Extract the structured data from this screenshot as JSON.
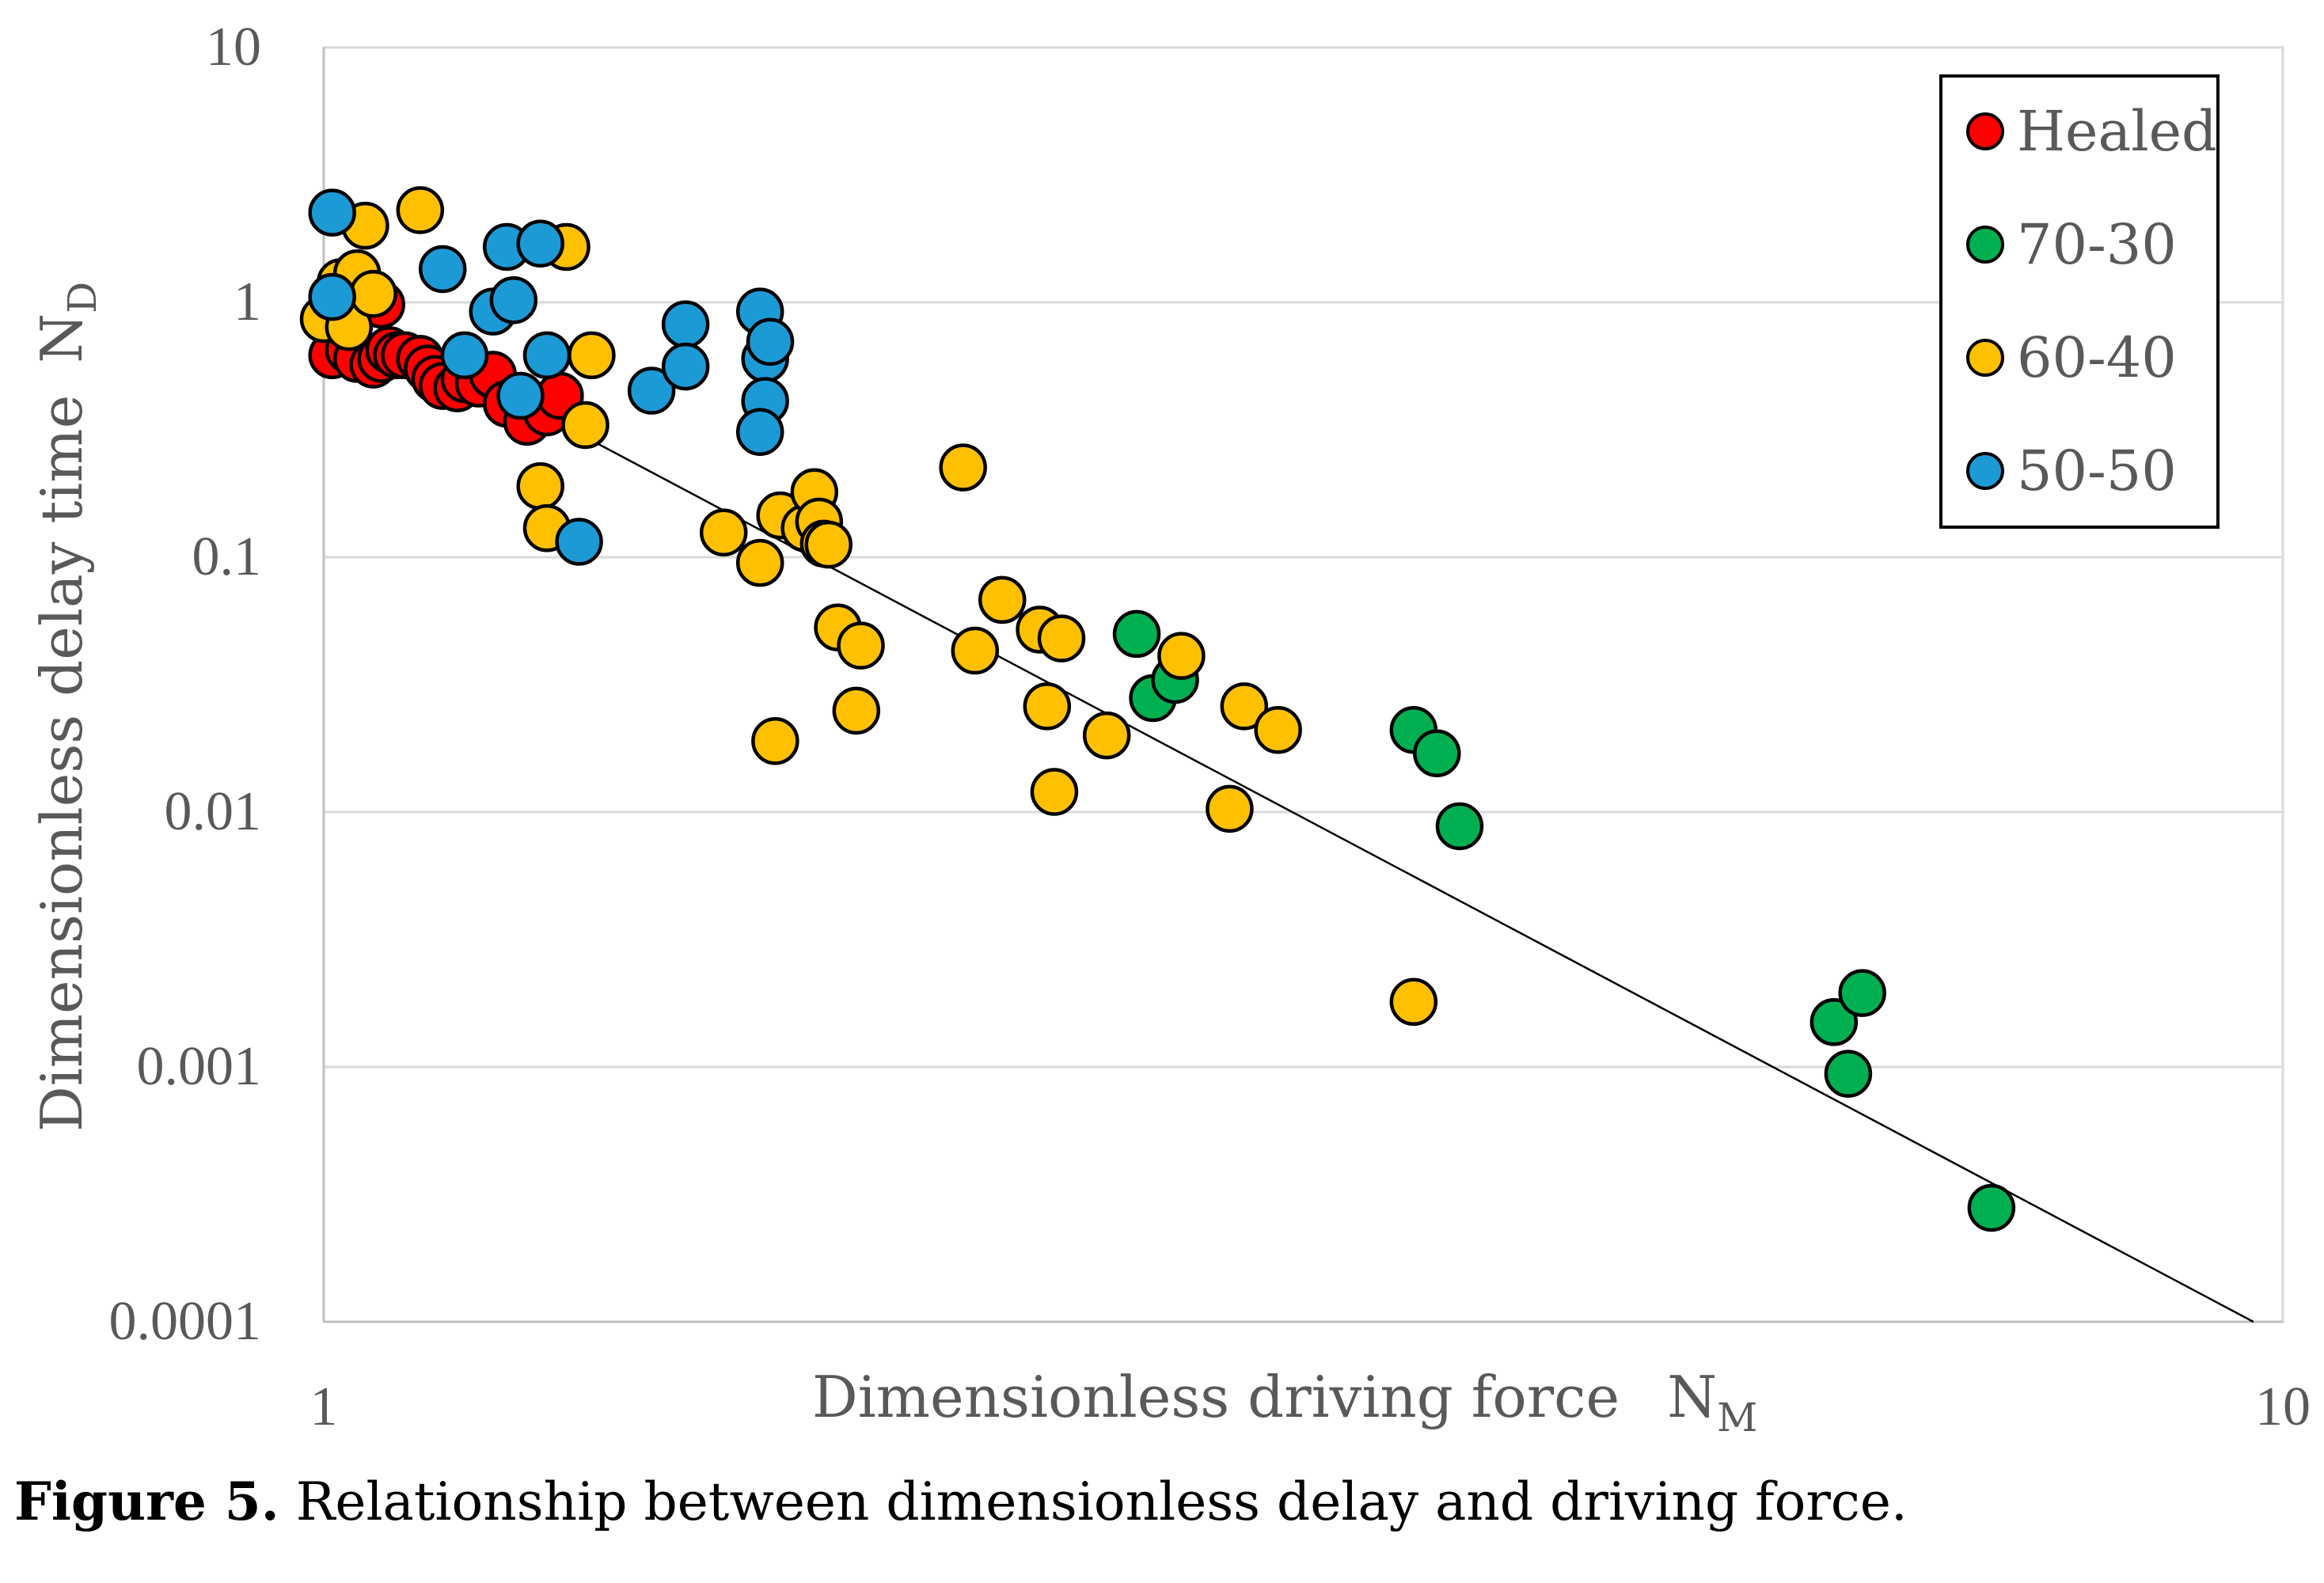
{
  "caption": {
    "label": "Figure 5.",
    "text": " Relationship between dimensionless delay and driving force."
  },
  "chart_data": {
    "type": "scatter",
    "xscale": "log",
    "yscale": "log",
    "xlim": [
      1,
      10
    ],
    "ylim": [
      0.0001,
      10
    ],
    "xlabel": "Dimensionless driving force",
    "xlabel_symbol": "N",
    "xlabel_sub": "M",
    "ylabel": "Dimensionless delay time",
    "ylabel_symbol": "N",
    "ylabel_sub": "D",
    "x_ticks": [
      {
        "value": 1,
        "label": "1"
      },
      {
        "value": 10,
        "label": "10"
      }
    ],
    "y_ticks": [
      {
        "value": 10,
        "label": "10"
      },
      {
        "value": 1,
        "label": "1"
      },
      {
        "value": 0.1,
        "label": "0.1"
      },
      {
        "value": 0.01,
        "label": "0.01"
      },
      {
        "value": 0.001,
        "label": "0.001"
      },
      {
        "value": 0.0001,
        "label": "0.0001"
      }
    ],
    "grid": "horizontal",
    "legend_position": "top-right",
    "trendline": {
      "x": [
        0.99,
        9.66
      ],
      "y": [
        1.08,
        0.0001
      ],
      "color": "#000000"
    },
    "series": [
      {
        "name": "Healed",
        "color": "#ff0000",
        "points": [
          [
            1.01,
            0.85
          ],
          [
            1.01,
            0.62
          ],
          [
            1.03,
            0.65
          ],
          [
            1.04,
            0.6
          ],
          [
            1.06,
            0.57
          ],
          [
            1.07,
            0.6
          ],
          [
            1.08,
            0.65
          ],
          [
            1.09,
            0.62
          ],
          [
            1.1,
            0.62
          ],
          [
            1.12,
            0.6
          ],
          [
            1.13,
            0.55
          ],
          [
            1.14,
            0.5
          ],
          [
            1.15,
            0.47
          ],
          [
            1.17,
            0.46
          ],
          [
            1.18,
            0.5
          ],
          [
            1.2,
            0.48
          ],
          [
            1.22,
            0.52
          ],
          [
            1.24,
            0.4
          ],
          [
            1.27,
            0.34
          ],
          [
            1.3,
            0.37
          ],
          [
            1.32,
            0.43
          ],
          [
            1.07,
            0.98
          ]
        ]
      },
      {
        "name": "70-30",
        "color": "#00b050",
        "points": [
          [
            2.6,
            0.05
          ],
          [
            2.65,
            0.028
          ],
          [
            2.72,
            0.033
          ],
          [
            3.6,
            0.021
          ],
          [
            3.7,
            0.017
          ],
          [
            3.8,
            0.0088
          ],
          [
            5.9,
            0.0015
          ],
          [
            6.0,
            0.00094
          ],
          [
            6.1,
            0.00195
          ],
          [
            7.1,
            0.00028
          ]
        ]
      },
      {
        "name": "60-40",
        "color": "#ffc000",
        "points": [
          [
            1.0,
            0.86
          ],
          [
            1.02,
            1.2
          ],
          [
            1.03,
            0.8
          ],
          [
            1.04,
            1.3
          ],
          [
            1.05,
            2.0
          ],
          [
            1.06,
            1.08
          ],
          [
            1.12,
            2.3
          ],
          [
            1.33,
            1.65
          ],
          [
            1.37,
            0.62
          ],
          [
            1.36,
            0.33
          ],
          [
            1.29,
            0.19
          ],
          [
            1.3,
            0.13
          ],
          [
            1.6,
            0.125
          ],
          [
            1.67,
            0.095
          ],
          [
            1.71,
            0.146
          ],
          [
            1.76,
            0.13
          ],
          [
            1.78,
            0.18
          ],
          [
            1.79,
            0.138
          ],
          [
            1.8,
            0.113
          ],
          [
            1.81,
            0.112
          ],
          [
            1.83,
            0.053
          ],
          [
            1.88,
            0.045
          ],
          [
            1.87,
            0.025
          ],
          [
            1.7,
            0.019
          ],
          [
            2.12,
            0.225
          ],
          [
            2.15,
            0.043
          ],
          [
            2.22,
            0.068
          ],
          [
            2.32,
            0.052
          ],
          [
            2.34,
            0.026
          ],
          [
            2.36,
            0.012
          ],
          [
            2.38,
            0.048
          ],
          [
            2.51,
            0.02
          ],
          [
            2.74,
            0.041
          ],
          [
            2.95,
            0.026
          ],
          [
            3.07,
            0.021
          ],
          [
            2.9,
            0.0103
          ],
          [
            3.6,
            0.0018
          ]
        ]
      },
      {
        "name": "50-50",
        "color": "#1c9ad6",
        "points": [
          [
            1.01,
            2.25
          ],
          [
            1.01,
            1.05
          ],
          [
            1.15,
            1.35
          ],
          [
            1.18,
            0.62
          ],
          [
            1.22,
            0.92
          ],
          [
            1.24,
            1.65
          ],
          [
            1.25,
            1.02
          ],
          [
            1.26,
            0.43
          ],
          [
            1.29,
            1.7
          ],
          [
            1.3,
            0.62
          ],
          [
            1.35,
            0.115
          ],
          [
            1.47,
            0.45
          ],
          [
            1.53,
            0.82
          ],
          [
            1.53,
            0.56
          ],
          [
            1.67,
            0.92
          ],
          [
            1.68,
            0.6
          ],
          [
            1.69,
            0.7
          ],
          [
            1.68,
            0.41
          ],
          [
            1.67,
            0.31
          ]
        ]
      }
    ]
  }
}
